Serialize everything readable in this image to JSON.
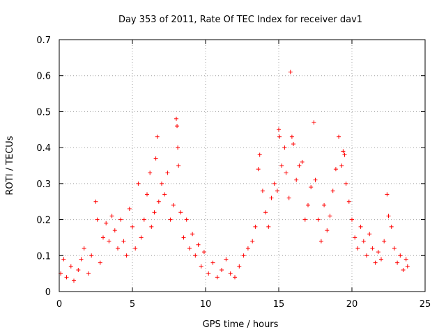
{
  "chart_data": {
    "type": "scatter",
    "title": "Day 353 of 2011, Rate Of TEC Index for receiver dav1",
    "xlabel": "GPS time / hours",
    "ylabel": "ROTI / TECUs",
    "xlim": [
      0,
      25
    ],
    "ylim": [
      0,
      0.7
    ],
    "xticks": [
      "0",
      "5",
      "10",
      "15",
      "20",
      "25"
    ],
    "yticks": [
      "0",
      "0.1",
      "0.2",
      "0.3",
      "0.4",
      "0.5",
      "0.6",
      "0.7"
    ],
    "grid": true,
    "marker": "+",
    "color": "#ff0000",
    "series": [
      {
        "points": [
          [
            0.1,
            0.05
          ],
          [
            0.3,
            0.09
          ],
          [
            0.5,
            0.04
          ],
          [
            0.8,
            0.07
          ],
          [
            1.0,
            0.03
          ],
          [
            1.3,
            0.06
          ],
          [
            1.5,
            0.09
          ],
          [
            1.7,
            0.12
          ],
          [
            2.0,
            0.05
          ],
          [
            2.2,
            0.1
          ],
          [
            2.5,
            0.25
          ],
          [
            2.6,
            0.2
          ],
          [
            2.8,
            0.08
          ],
          [
            3.0,
            0.15
          ],
          [
            3.2,
            0.19
          ],
          [
            3.4,
            0.14
          ],
          [
            3.6,
            0.21
          ],
          [
            3.8,
            0.17
          ],
          [
            4.0,
            0.12
          ],
          [
            4.2,
            0.2
          ],
          [
            4.4,
            0.14
          ],
          [
            4.6,
            0.1
          ],
          [
            4.8,
            0.23
          ],
          [
            5.0,
            0.18
          ],
          [
            5.2,
            0.12
          ],
          [
            5.4,
            0.3
          ],
          [
            5.6,
            0.15
          ],
          [
            5.8,
            0.2
          ],
          [
            6.0,
            0.27
          ],
          [
            6.2,
            0.33
          ],
          [
            6.3,
            0.18
          ],
          [
            6.5,
            0.22
          ],
          [
            6.6,
            0.37
          ],
          [
            6.7,
            0.43
          ],
          [
            6.8,
            0.25
          ],
          [
            7.0,
            0.3
          ],
          [
            7.2,
            0.27
          ],
          [
            7.4,
            0.33
          ],
          [
            7.6,
            0.2
          ],
          [
            7.8,
            0.24
          ],
          [
            8.0,
            0.48
          ],
          [
            8.05,
            0.46
          ],
          [
            8.1,
            0.4
          ],
          [
            8.15,
            0.35
          ],
          [
            8.3,
            0.22
          ],
          [
            8.5,
            0.15
          ],
          [
            8.7,
            0.2
          ],
          [
            8.9,
            0.12
          ],
          [
            9.1,
            0.16
          ],
          [
            9.3,
            0.1
          ],
          [
            9.5,
            0.13
          ],
          [
            9.7,
            0.07
          ],
          [
            9.9,
            0.11
          ],
          [
            10.2,
            0.05
          ],
          [
            10.5,
            0.08
          ],
          [
            10.8,
            0.04
          ],
          [
            11.1,
            0.06
          ],
          [
            11.4,
            0.09
          ],
          [
            11.7,
            0.05
          ],
          [
            12.0,
            0.04
          ],
          [
            12.3,
            0.07
          ],
          [
            12.6,
            0.1
          ],
          [
            12.9,
            0.12
          ],
          [
            13.2,
            0.14
          ],
          [
            13.4,
            0.18
          ],
          [
            13.6,
            0.34
          ],
          [
            13.7,
            0.38
          ],
          [
            13.9,
            0.28
          ],
          [
            14.1,
            0.22
          ],
          [
            14.3,
            0.18
          ],
          [
            14.5,
            0.26
          ],
          [
            14.7,
            0.3
          ],
          [
            14.9,
            0.28
          ],
          [
            15.0,
            0.45
          ],
          [
            15.05,
            0.43
          ],
          [
            15.2,
            0.35
          ],
          [
            15.4,
            0.4
          ],
          [
            15.5,
            0.33
          ],
          [
            15.7,
            0.26
          ],
          [
            15.8,
            0.61
          ],
          [
            15.9,
            0.43
          ],
          [
            16.0,
            0.41
          ],
          [
            16.2,
            0.31
          ],
          [
            16.4,
            0.35
          ],
          [
            16.6,
            0.36
          ],
          [
            16.8,
            0.2
          ],
          [
            17.0,
            0.24
          ],
          [
            17.2,
            0.29
          ],
          [
            17.4,
            0.47
          ],
          [
            17.5,
            0.31
          ],
          [
            17.7,
            0.2
          ],
          [
            17.9,
            0.14
          ],
          [
            18.1,
            0.24
          ],
          [
            18.3,
            0.17
          ],
          [
            18.5,
            0.21
          ],
          [
            18.7,
            0.28
          ],
          [
            18.9,
            0.34
          ],
          [
            19.1,
            0.43
          ],
          [
            19.3,
            0.35
          ],
          [
            19.4,
            0.39
          ],
          [
            19.5,
            0.38
          ],
          [
            19.6,
            0.3
          ],
          [
            19.8,
            0.25
          ],
          [
            20.0,
            0.2
          ],
          [
            20.2,
            0.15
          ],
          [
            20.4,
            0.12
          ],
          [
            20.6,
            0.18
          ],
          [
            20.8,
            0.14
          ],
          [
            21.0,
            0.1
          ],
          [
            21.2,
            0.16
          ],
          [
            21.4,
            0.12
          ],
          [
            21.6,
            0.08
          ],
          [
            21.8,
            0.11
          ],
          [
            22.0,
            0.09
          ],
          [
            22.2,
            0.14
          ],
          [
            22.4,
            0.27
          ],
          [
            22.5,
            0.21
          ],
          [
            22.7,
            0.18
          ],
          [
            22.9,
            0.12
          ],
          [
            23.1,
            0.08
          ],
          [
            23.3,
            0.1
          ],
          [
            23.5,
            0.06
          ],
          [
            23.7,
            0.09
          ],
          [
            23.8,
            0.07
          ]
        ]
      }
    ]
  }
}
